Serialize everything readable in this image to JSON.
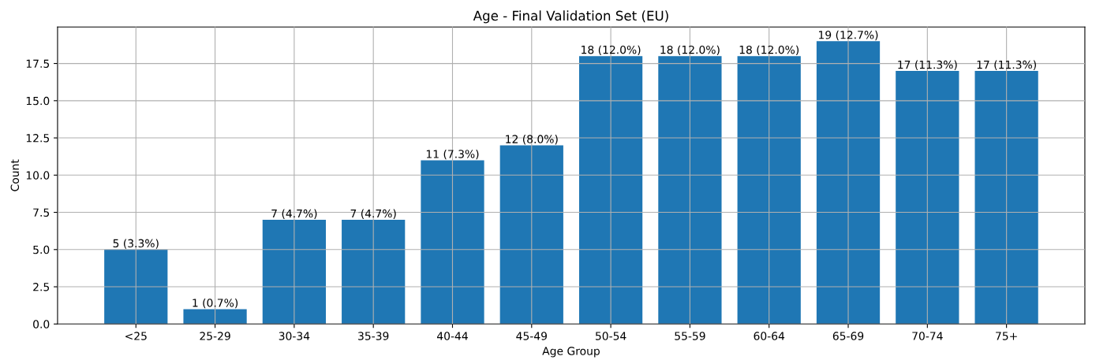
{
  "chart_data": {
    "type": "bar",
    "title": "Age - Final Validation Set (EU)",
    "xlabel": "Age Group",
    "ylabel": "Count",
    "categories": [
      "<25",
      "25-29",
      "30-34",
      "35-39",
      "40-44",
      "45-49",
      "50-54",
      "55-59",
      "60-64",
      "65-69",
      "70-74",
      "75+"
    ],
    "values": [
      5,
      1,
      7,
      7,
      11,
      12,
      18,
      18,
      18,
      19,
      17,
      17
    ],
    "value_labels": [
      "5 (3.3%)",
      "1 (0.7%)",
      "7 (4.7%)",
      "7 (4.7%)",
      "11 (7.3%)",
      "12 (8.0%)",
      "18 (12.0%)",
      "18 (12.0%)",
      "18 (12.0%)",
      "19 (12.7%)",
      "17 (11.3%)",
      "17 (11.3%)"
    ],
    "color": "#1f77b4",
    "ylim": [
      0,
      19.95
    ],
    "yticks": [
      {
        "value": 0,
        "label": "0.0"
      },
      2.5,
      {
        "value": 5,
        "label": "5.0"
      },
      7.5,
      {
        "value": 10,
        "label": "10.0"
      },
      12.5,
      {
        "value": 15,
        "label": "15.0"
      },
      17.5
    ],
    "grid": true,
    "legend": false
  }
}
